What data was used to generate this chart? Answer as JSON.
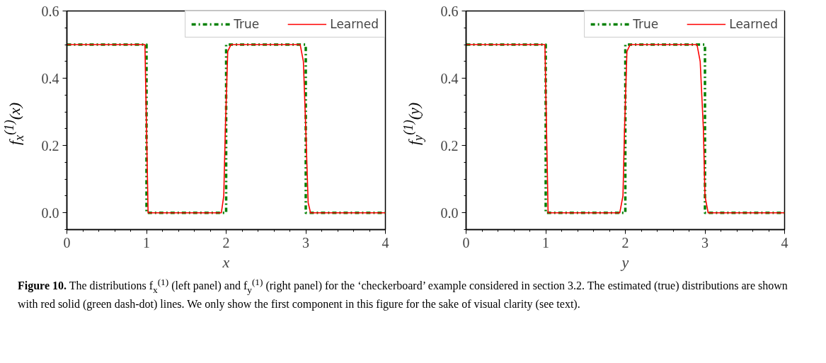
{
  "chart_data": [
    {
      "type": "line",
      "xlabel": "x",
      "ylabel": "f$_{x}$$^{(1)}$(x)",
      "xlim": [
        0,
        4
      ],
      "ylim": [
        -0.05,
        0.6
      ],
      "xticks": [
        0,
        1,
        2,
        3,
        4
      ],
      "yticks": [
        {
          "value": 0,
          "label": "0.0"
        },
        {
          "value": 0.2,
          "label": "0.2"
        },
        {
          "value": 0.4,
          "label": "0.4"
        },
        {
          "value": 0.6,
          "label": "0.6"
        }
      ],
      "grid": false,
      "legend": "top right",
      "marker": "none",
      "series": [
        {
          "name": "True",
          "color": "#008000",
          "line_style": "dashdot",
          "x": [
            0,
            1,
            1,
            2,
            2,
            3,
            3,
            4
          ],
          "values": [
            0.5,
            0.5,
            0,
            0,
            0.5,
            0.5,
            0,
            0
          ]
        },
        {
          "name": "Learned",
          "color": "#ff0000",
          "line_style": "solid",
          "x": [
            0,
            0.98,
            1.0,
            1.02,
            1.94,
            1.97,
            1.99,
            2.02,
            2.06,
            2.93,
            2.97,
            3.0,
            3.03,
            3.06,
            4
          ],
          "values": [
            0.5,
            0.5,
            0.25,
            0,
            0,
            0.05,
            0.25,
            0.48,
            0.5,
            0.5,
            0.45,
            0.25,
            0.03,
            0,
            0
          ]
        }
      ],
      "annotations": [
        "Figure 10. The distributions f$_{x}$$^{(1)}$ (left panel) and f$_{y}$$^{(1)}$ (right panel) for the ‘checkerboard’ example considered in section 3.2. The estimated (true) distributions are shown with red solid (green dash-dot) lines. We only show the first component in this figure for the sake of visual clarity (see text)."
      ]
    },
    {
      "type": "line",
      "xlabel": "y",
      "ylabel": "f$_{y}$$^{(1)}$(y)",
      "xlim": [
        0,
        4
      ],
      "ylim": [
        -0.05,
        0.6
      ],
      "xticks": [
        0,
        1,
        2,
        3,
        4
      ],
      "yticks": [
        {
          "value": 0,
          "label": "0.0"
        },
        {
          "value": 0.2,
          "label": "0.2"
        },
        {
          "value": 0.4,
          "label": "0.4"
        },
        {
          "value": 0.6,
          "label": "0.6"
        }
      ],
      "grid": false,
      "legend": "top right",
      "marker": "none",
      "series": [
        {
          "name": "True",
          "color": "#008000",
          "line_style": "dashdot",
          "x": [
            0,
            1,
            1,
            2,
            2,
            3,
            3,
            4
          ],
          "values": [
            0.5,
            0.5,
            0,
            0,
            0.5,
            0.5,
            0,
            0
          ]
        },
        {
          "name": "Learned",
          "color": "#ff0000",
          "line_style": "solid",
          "x": [
            0,
            0.99,
            1.01,
            1.03,
            1.93,
            1.97,
            1.99,
            2.02,
            2.06,
            2.9,
            2.94,
            2.98,
            3.0,
            3.04,
            4
          ],
          "values": [
            0.5,
            0.5,
            0.25,
            0,
            0,
            0.05,
            0.25,
            0.48,
            0.5,
            0.5,
            0.45,
            0.25,
            0.05,
            0,
            0
          ]
        }
      ]
    }
  ]
}
